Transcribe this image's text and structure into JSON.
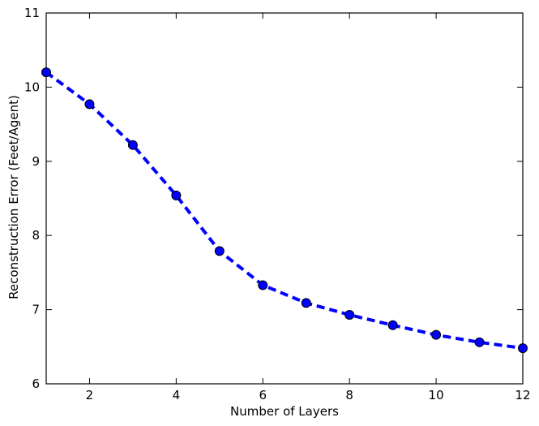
{
  "chart_data": {
    "type": "line",
    "title": "",
    "xlabel": "Number of Layers",
    "ylabel": "Reconstruction Error (Feet/Agent)",
    "xlim": [
      1,
      12
    ],
    "ylim": [
      6,
      11
    ],
    "xticks": [
      2,
      4,
      6,
      8,
      10,
      12
    ],
    "yticks": [
      6,
      7,
      8,
      9,
      10,
      11
    ],
    "grid": false,
    "series": [
      {
        "name": "",
        "color": "#0000ff",
        "line_style": "dashed",
        "marker": "circle",
        "x": [
          1,
          2,
          3,
          4,
          5,
          6,
          7,
          8,
          9,
          10,
          11,
          12
        ],
        "y": [
          10.2,
          9.77,
          9.22,
          8.54,
          7.79,
          7.33,
          7.09,
          6.93,
          6.79,
          6.66,
          6.56,
          6.48
        ]
      }
    ]
  }
}
